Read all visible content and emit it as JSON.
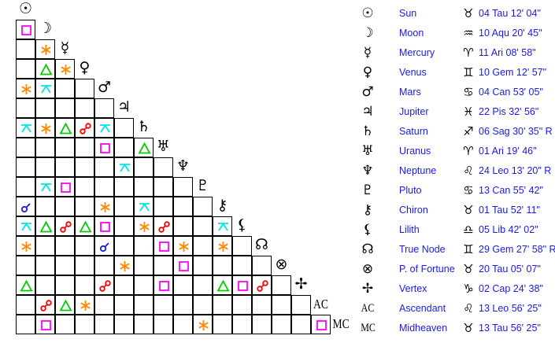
{
  "planets": [
    {
      "name": "Sun",
      "glyph": "☉",
      "sign_glyph": "♉",
      "position": "04 Tau 12' 04\""
    },
    {
      "name": "Moon",
      "glyph": "☽",
      "sign_glyph": "♒",
      "position": "10 Aqu 20' 45\""
    },
    {
      "name": "Mercury",
      "glyph": "☿",
      "sign_glyph": "♈",
      "position": "11 Ari 08' 58\""
    },
    {
      "name": "Venus",
      "glyph": "♀",
      "sign_glyph": "♊",
      "position": "10 Gem 12' 57\""
    },
    {
      "name": "Mars",
      "glyph": "♂",
      "sign_glyph": "♋",
      "position": "04 Can 53' 05\""
    },
    {
      "name": "Jupiter",
      "glyph": "♃",
      "sign_glyph": "♓",
      "position": "22 Pis 32' 56\""
    },
    {
      "name": "Saturn",
      "glyph": "♄",
      "sign_glyph": "♐",
      "position": "06 Sag 30' 35\" R"
    },
    {
      "name": "Uranus",
      "glyph": "♅",
      "sign_glyph": "♈",
      "position": "01 Ari 19' 46\""
    },
    {
      "name": "Neptune",
      "glyph": "♆",
      "sign_glyph": "♌",
      "position": "24 Leo 13' 20\" R"
    },
    {
      "name": "Pluto",
      "glyph": "♇",
      "sign_glyph": "♋",
      "position": "13 Can 55' 42\""
    },
    {
      "name": "Chiron",
      "glyph": "⚷",
      "sign_glyph": "♉",
      "position": "01 Tau 52' 11\""
    },
    {
      "name": "Lilith",
      "glyph": "⚸",
      "sign_glyph": "♎",
      "position": "05 Lib 42' 02\""
    },
    {
      "name": "True Node",
      "glyph": "☊",
      "sign_glyph": "♊",
      "position": "29 Gem 27' 58\" R"
    },
    {
      "name": "P. of Fortune",
      "glyph": "⊗",
      "sign_glyph": "♉",
      "position": "20 Tau 05' 07\""
    },
    {
      "name": "Vertex",
      "glyph": "✢",
      "sign_glyph": "♑",
      "position": "02 Cap 24' 38\""
    },
    {
      "name": "Ascendant",
      "glyph": "AC",
      "sign_glyph": "♌",
      "position": "13 Leo 56' 25\""
    },
    {
      "name": "Midheaven",
      "glyph": "MC",
      "sign_glyph": "♉",
      "position": "13 Tau 56' 25\""
    }
  ],
  "aspect_colors": {
    "conjunction": "#1a1ae6",
    "opposition": "#ff0000",
    "trine": "#00cc00",
    "square": "#ff00ff",
    "sextile": "#ff8800",
    "quincunx": "#00e5e5"
  },
  "aspects": [
    [
      1,
      0,
      "square"
    ],
    [
      2,
      1,
      "sextile"
    ],
    [
      3,
      1,
      "trine"
    ],
    [
      3,
      2,
      "sextile"
    ],
    [
      4,
      0,
      "sextile"
    ],
    [
      4,
      1,
      "quincunx"
    ],
    [
      6,
      0,
      "quincunx"
    ],
    [
      6,
      1,
      "sextile"
    ],
    [
      6,
      2,
      "trine"
    ],
    [
      6,
      3,
      "opposition"
    ],
    [
      6,
      4,
      "quincunx"
    ],
    [
      7,
      4,
      "square"
    ],
    [
      7,
      6,
      "trine"
    ],
    [
      8,
      5,
      "quincunx"
    ],
    [
      9,
      1,
      "quincunx"
    ],
    [
      9,
      2,
      "square"
    ],
    [
      10,
      0,
      "conjunction"
    ],
    [
      10,
      4,
      "sextile"
    ],
    [
      10,
      6,
      "quincunx"
    ],
    [
      11,
      0,
      "quincunx"
    ],
    [
      11,
      1,
      "trine"
    ],
    [
      11,
      2,
      "opposition"
    ],
    [
      11,
      3,
      "trine"
    ],
    [
      11,
      4,
      "square"
    ],
    [
      11,
      6,
      "sextile"
    ],
    [
      11,
      7,
      "opposition"
    ],
    [
      11,
      10,
      "quincunx"
    ],
    [
      12,
      0,
      "sextile"
    ],
    [
      12,
      4,
      "conjunction"
    ],
    [
      12,
      7,
      "square"
    ],
    [
      12,
      8,
      "sextile"
    ],
    [
      12,
      10,
      "sextile"
    ],
    [
      13,
      5,
      "sextile"
    ],
    [
      13,
      8,
      "square"
    ],
    [
      14,
      0,
      "trine"
    ],
    [
      14,
      4,
      "opposition"
    ],
    [
      14,
      7,
      "square"
    ],
    [
      14,
      10,
      "trine"
    ],
    [
      14,
      11,
      "square"
    ],
    [
      14,
      12,
      "opposition"
    ],
    [
      15,
      1,
      "opposition"
    ],
    [
      15,
      2,
      "trine"
    ],
    [
      15,
      3,
      "sextile"
    ],
    [
      16,
      1,
      "square"
    ],
    [
      16,
      9,
      "sextile"
    ],
    [
      16,
      15,
      "square"
    ]
  ]
}
